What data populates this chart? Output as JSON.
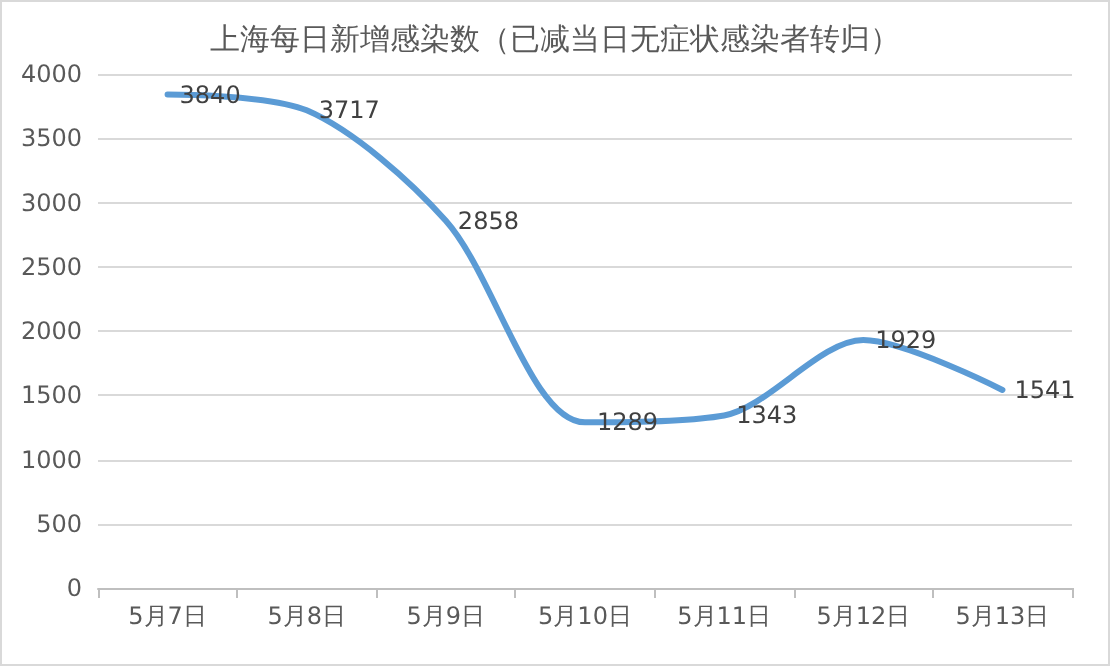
{
  "chart_data": {
    "type": "line",
    "title": "上海每日新增感染数（已减当日无症状感染者转归）",
    "categories": [
      "5月7日",
      "5月8日",
      "5月9日",
      "5月10日",
      "5月11日",
      "5月12日",
      "5月13日"
    ],
    "series": [
      {
        "color": "#5b9bd5",
        "values": [
          3840,
          3717,
          2858,
          1289,
          1343,
          1929,
          1541
        ]
      }
    ],
    "ylim": [
      0,
      4000
    ],
    "yticks": [
      0,
      500,
      1000,
      1500,
      2000,
      2500,
      3000,
      3500,
      4000
    ],
    "grid": "y",
    "marker": "none",
    "line_style": "solid",
    "data_labels": true
  }
}
